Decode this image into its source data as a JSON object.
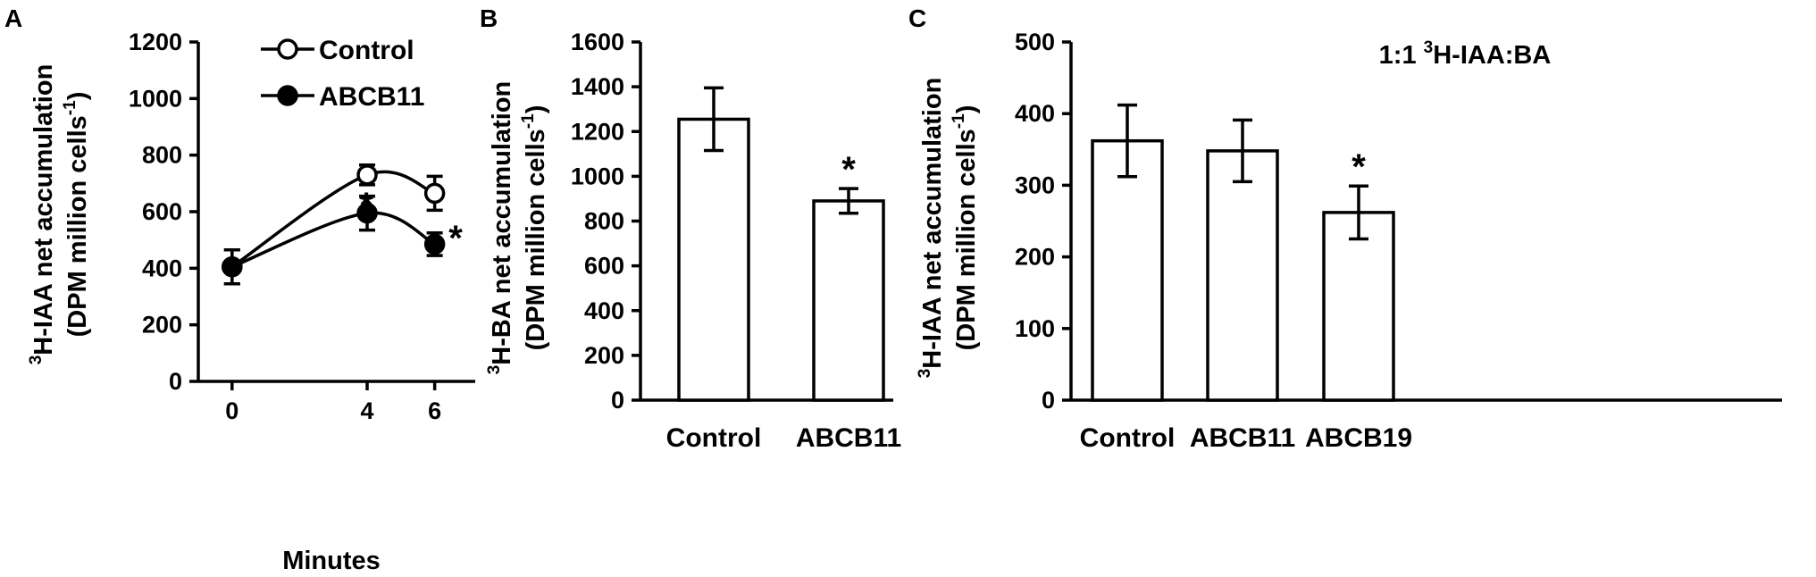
{
  "chart_data": [
    {
      "panel": "A",
      "type": "line",
      "x": [
        0,
        4,
        6
      ],
      "xlabel": "Minutes",
      "ylabel_main": "H-IAA  net accumulation",
      "ylabel_sup": "3",
      "ylabel_unit": "(DPM million cells",
      "ylabel_unit_sup": "-1",
      "ylabel_unit_close": ")",
      "ylim": [
        0,
        1200
      ],
      "yticks": [
        0,
        200,
        400,
        600,
        800,
        1000,
        1200
      ],
      "xticks": [
        0,
        4,
        6
      ],
      "series": [
        {
          "name": "Control",
          "marker": "open-circle",
          "values": [
            405,
            730,
            665
          ],
          "errors": [
            60,
            35,
            60
          ]
        },
        {
          "name": "ABCB11",
          "marker": "filled-circle",
          "values": [
            405,
            595,
            485
          ],
          "errors": [
            60,
            60,
            40
          ]
        }
      ],
      "significance": [
        {
          "x": 4,
          "label": "*"
        },
        {
          "x": 6,
          "label": "*"
        }
      ],
      "legend_position": "top"
    },
    {
      "panel": "B",
      "type": "bar",
      "categories": [
        "Control",
        "ABCB11"
      ],
      "values": [
        1255,
        890
      ],
      "errors": [
        140,
        55
      ],
      "ylabel_main": "H-BA  net accumulation",
      "ylabel_sup": "3",
      "ylabel_unit": "(DPM million cells",
      "ylabel_unit_sup": "-1",
      "ylabel_unit_close": ")",
      "ylim": [
        0,
        1600
      ],
      "yticks": [
        0,
        200,
        400,
        600,
        800,
        1000,
        1200,
        1400,
        1600
      ],
      "significance": [
        "",
        "*"
      ]
    },
    {
      "panel": "C",
      "type": "bar",
      "categories": [
        "Control",
        "ABCB11",
        "ABCB19"
      ],
      "values": [
        362,
        348,
        262
      ],
      "errors": [
        50,
        43,
        37
      ],
      "ylabel_main": "H-IAA  net accumulation",
      "ylabel_sup": "3",
      "ylabel_unit": "(DPM million cells",
      "ylabel_unit_sup": "-1",
      "ylabel_unit_close": ")",
      "ylim": [
        0,
        500
      ],
      "yticks": [
        0,
        100,
        200,
        300,
        400,
        500
      ],
      "annotation_pre": "1:1 ",
      "annotation_sup": "3",
      "annotation_post": "H-IAA:BA",
      "significance": [
        "",
        "",
        "*"
      ]
    }
  ]
}
